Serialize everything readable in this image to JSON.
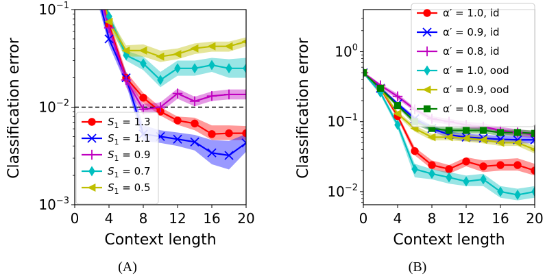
{
  "chart_data": [
    {
      "type": "line",
      "panel_caption": "(A)",
      "xlabel": "Context length",
      "ylabel": "Classification error",
      "yscale": "log",
      "xlim": [
        0,
        20
      ],
      "ylim": [
        0.001,
        0.1
      ],
      "xticks": [
        0,
        4,
        8,
        12,
        16,
        20
      ],
      "yticks": [
        {
          "value": 0.001,
          "base": "10",
          "exp": "−3"
        },
        {
          "value": 0.01,
          "base": "10",
          "exp": "−2"
        },
        {
          "value": 0.1,
          "base": "10",
          "exp": "−1"
        }
      ],
      "reference_line": {
        "y": 0.01,
        "style": "dashed",
        "color": "#000000"
      },
      "legend_location": "lower-left",
      "series": [
        {
          "label_main": "S",
          "label_sub": "1",
          "label_rest": " = 1.3",
          "color": "#ff0000",
          "marker": "circle",
          "x": [
            2,
            4,
            6,
            8,
            10,
            12,
            14,
            16,
            18,
            20
          ],
          "y": [
            0.3,
            0.07,
            0.02,
            0.0125,
            0.009,
            0.0073,
            0.0068,
            0.0053,
            0.0054,
            0.0054
          ],
          "band": [
            [
              0.35,
              0.25
            ],
            [
              0.08,
              0.06
            ],
            [
              0.023,
              0.018
            ],
            [
              0.014,
              0.011
            ],
            [
              0.01,
              0.0082
            ],
            [
              0.008,
              0.0066
            ],
            [
              0.0078,
              0.0058
            ],
            [
              0.0065,
              0.0046
            ],
            [
              0.0065,
              0.0046
            ],
            [
              0.0064,
              0.0046
            ]
          ]
        },
        {
          "label_main": "S",
          "label_sub": "1",
          "label_rest": " = 1.1",
          "color": "#0000ff",
          "marker": "x",
          "x": [
            2,
            4,
            6,
            8,
            10,
            12,
            14,
            16,
            18,
            20
          ],
          "y": [
            0.25,
            0.05,
            0.02,
            0.0053,
            0.005,
            0.0047,
            0.0044,
            0.0034,
            0.0032,
            0.0043
          ],
          "band": [
            [
              0.3,
              0.2
            ],
            [
              0.06,
              0.043
            ],
            [
              0.023,
              0.017
            ],
            [
              0.0065,
              0.0045
            ],
            [
              0.0058,
              0.0043
            ],
            [
              0.0055,
              0.004
            ],
            [
              0.0052,
              0.0036
            ],
            [
              0.0046,
              0.0026
            ],
            [
              0.0045,
              0.0023
            ],
            [
              0.0053,
              0.0035
            ]
          ]
        },
        {
          "label_main": "S",
          "label_sub": "1",
          "label_rest": " = 0.9",
          "color": "#bf00bf",
          "marker": "plus",
          "x": [
            2,
            4,
            6,
            8,
            10,
            12,
            14,
            16,
            18,
            20
          ],
          "y": [
            0.3,
            0.065,
            0.019,
            0.0095,
            0.01,
            0.0138,
            0.0115,
            0.013,
            0.0135,
            0.0135
          ],
          "band": [
            [
              0.35,
              0.25
            ],
            [
              0.075,
              0.055
            ],
            [
              0.022,
              0.016
            ],
            [
              0.0108,
              0.0084
            ],
            [
              0.0112,
              0.0089
            ],
            [
              0.0155,
              0.0122
            ],
            [
              0.0128,
              0.0102
            ],
            [
              0.0145,
              0.0116
            ],
            [
              0.0152,
              0.012
            ],
            [
              0.0152,
              0.012
            ]
          ]
        },
        {
          "label_main": "S",
          "label_sub": "1",
          "label_rest": " = 0.7",
          "color": "#00bfbf",
          "marker": "diamond",
          "x": [
            2,
            4,
            6,
            8,
            10,
            12,
            14,
            16,
            18,
            20
          ],
          "y": [
            0.4,
            0.085,
            0.034,
            0.028,
            0.019,
            0.025,
            0.025,
            0.027,
            0.025,
            0.025
          ],
          "band": [
            [
              0.45,
              0.35
            ],
            [
              0.095,
              0.075
            ],
            [
              0.038,
              0.03
            ],
            [
              0.033,
              0.024
            ],
            [
              0.023,
              0.016
            ],
            [
              0.03,
              0.021
            ],
            [
              0.03,
              0.021
            ],
            [
              0.032,
              0.023
            ],
            [
              0.031,
              0.02
            ],
            [
              0.032,
              0.02
            ]
          ]
        },
        {
          "label_main": "S",
          "label_sub": "1",
          "label_rest": " = 0.5",
          "color": "#bfbf00",
          "marker": "triangle-left",
          "x": [
            2,
            4,
            6,
            8,
            10,
            12,
            14,
            16,
            18,
            20
          ],
          "y": [
            0.4,
            0.075,
            0.038,
            0.038,
            0.033,
            0.035,
            0.04,
            0.042,
            0.042,
            0.047
          ],
          "band": [
            [
              0.45,
              0.35
            ],
            [
              0.085,
              0.066
            ],
            [
              0.043,
              0.033
            ],
            [
              0.044,
              0.033
            ],
            [
              0.038,
              0.029
            ],
            [
              0.04,
              0.031
            ],
            [
              0.045,
              0.035
            ],
            [
              0.047,
              0.037
            ],
            [
              0.047,
              0.037
            ],
            [
              0.052,
              0.042
            ]
          ]
        }
      ]
    },
    {
      "type": "line",
      "panel_caption": "(B)",
      "xlabel": "Context length",
      "ylabel": "Classification error",
      "yscale": "log",
      "xlim": [
        0,
        20
      ],
      "ylim": [
        0.0065,
        4.0
      ],
      "xticks": [
        0,
        4,
        8,
        12,
        16,
        20
      ],
      "yticks": [
        {
          "value": 0.01,
          "base": "10",
          "exp": "−2"
        },
        {
          "value": 0.1,
          "base": "10",
          "exp": "−1"
        },
        {
          "value": 1,
          "base": "10",
          "exp": "0"
        }
      ],
      "legend_location": "top-right",
      "series": [
        {
          "label_main": "α′ = 1.0, id",
          "color": "#ff0000",
          "marker": "circle",
          "x": [
            0,
            2,
            4,
            6,
            8,
            10,
            12,
            14,
            16,
            18,
            20
          ],
          "y": [
            0.5,
            0.3,
            0.12,
            0.038,
            0.024,
            0.021,
            0.027,
            0.023,
            0.024,
            0.024,
            0.02
          ],
          "band": [
            [
              0.52,
              0.48
            ],
            [
              0.32,
              0.28
            ],
            [
              0.13,
              0.11
            ],
            [
              0.043,
              0.033
            ],
            [
              0.028,
              0.021
            ],
            [
              0.024,
              0.018
            ],
            [
              0.031,
              0.023
            ],
            [
              0.028,
              0.019
            ],
            [
              0.029,
              0.02
            ],
            [
              0.03,
              0.02
            ],
            [
              0.025,
              0.017
            ]
          ]
        },
        {
          "label_main": "α′ = 0.9, id",
          "color": "#0000ff",
          "marker": "x",
          "x": [
            0,
            2,
            4,
            6,
            8,
            10,
            12,
            14,
            16,
            18,
            20
          ],
          "y": [
            0.5,
            0.3,
            0.18,
            0.11,
            0.08,
            0.065,
            0.06,
            0.058,
            0.056,
            0.055,
            0.055
          ],
          "band": [
            [
              0.52,
              0.48
            ],
            [
              0.32,
              0.28
            ],
            [
              0.19,
              0.17
            ],
            [
              0.12,
              0.1
            ],
            [
              0.088,
              0.073
            ],
            [
              0.072,
              0.058
            ],
            [
              0.067,
              0.053
            ],
            [
              0.065,
              0.052
            ],
            [
              0.063,
              0.05
            ],
            [
              0.062,
              0.049
            ],
            [
              0.062,
              0.049
            ]
          ]
        },
        {
          "label_main": "α′ = 0.8, id",
          "color": "#bf00bf",
          "marker": "plus",
          "x": [
            0,
            2,
            4,
            6,
            8,
            10,
            12,
            14,
            16,
            18,
            20
          ],
          "y": [
            0.5,
            0.33,
            0.23,
            0.15,
            0.11,
            0.1,
            0.09,
            0.085,
            0.075,
            0.07,
            0.065
          ],
          "band": [
            [
              0.52,
              0.48
            ],
            [
              0.35,
              0.31
            ],
            [
              0.25,
              0.21
            ],
            [
              0.16,
              0.14
            ],
            [
              0.12,
              0.1
            ],
            [
              0.11,
              0.09
            ],
            [
              0.1,
              0.08
            ],
            [
              0.095,
              0.076
            ],
            [
              0.084,
              0.067
            ],
            [
              0.078,
              0.062
            ],
            [
              0.073,
              0.058
            ]
          ]
        },
        {
          "label_main": "α′ = 1.0, ood",
          "color": "#00bfbf",
          "marker": "diamond",
          "x": [
            0,
            2,
            4,
            6,
            8,
            10,
            12,
            14,
            16,
            18,
            20
          ],
          "y": [
            0.5,
            0.26,
            0.09,
            0.021,
            0.018,
            0.016,
            0.014,
            0.015,
            0.01,
            0.009,
            0.01
          ],
          "band": [
            [
              0.52,
              0.48
            ],
            [
              0.28,
              0.24
            ],
            [
              0.1,
              0.08
            ],
            [
              0.025,
              0.016
            ],
            [
              0.021,
              0.015
            ],
            [
              0.019,
              0.013
            ],
            [
              0.017,
              0.012
            ],
            [
              0.018,
              0.012
            ],
            [
              0.012,
              0.0082
            ],
            [
              0.011,
              0.0075
            ],
            [
              0.012,
              0.0082
            ]
          ]
        },
        {
          "label_main": "α′ = 0.9, ood",
          "color": "#bfbf00",
          "marker": "triangle-left",
          "x": [
            0,
            2,
            4,
            6,
            8,
            10,
            12,
            14,
            16,
            18,
            20
          ],
          "y": [
            0.5,
            0.3,
            0.13,
            0.08,
            0.06,
            0.06,
            0.058,
            0.055,
            0.05,
            0.05,
            0.04
          ],
          "band": [
            [
              0.52,
              0.48
            ],
            [
              0.32,
              0.28
            ],
            [
              0.14,
              0.12
            ],
            [
              0.088,
              0.072
            ],
            [
              0.067,
              0.054
            ],
            [
              0.067,
              0.054
            ],
            [
              0.065,
              0.052
            ],
            [
              0.062,
              0.049
            ],
            [
              0.056,
              0.045
            ],
            [
              0.056,
              0.045
            ],
            [
              0.045,
              0.035
            ]
          ]
        },
        {
          "label_main": "α′ = 0.8, ood",
          "color": "#008000",
          "marker": "square",
          "x": [
            0,
            2,
            4,
            6,
            8,
            10,
            12,
            14,
            16,
            18,
            20
          ],
          "y": [
            0.5,
            0.3,
            0.17,
            0.1,
            0.08,
            0.075,
            0.075,
            0.075,
            0.07,
            0.07,
            0.068
          ],
          "band": [
            [
              0.52,
              0.48
            ],
            [
              0.32,
              0.28
            ],
            [
              0.18,
              0.16
            ],
            [
              0.11,
              0.09
            ],
            [
              0.088,
              0.073
            ],
            [
              0.082,
              0.068
            ],
            [
              0.082,
              0.068
            ],
            [
              0.082,
              0.068
            ],
            [
              0.077,
              0.063
            ],
            [
              0.077,
              0.063
            ],
            [
              0.075,
              0.062
            ]
          ]
        }
      ]
    }
  ]
}
